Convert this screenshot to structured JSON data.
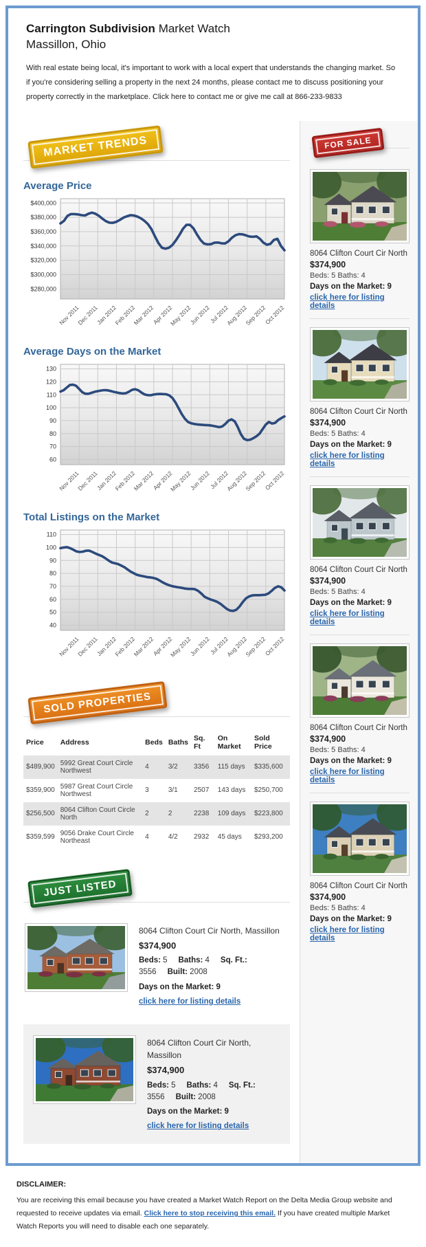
{
  "header": {
    "title_bold": "Carrington Subdivision",
    "title_rest": "Market Watch",
    "subtitle": "Massillon, Ohio",
    "intro": "With real estate being local, it's important to work with a local expert that understands the changing market. So if you're considering selling a property in the next 24 months, please contact me to discuss positioning your property correctly in the marketplace. Click here to contact me or give me call at 866-233-9833"
  },
  "badges": {
    "market_trends": "MARKET TRENDS",
    "for_sale": "FOR SALE",
    "sold_properties": "SOLD PROPERTIES",
    "just_listed": "JUST LISTED"
  },
  "colors": {
    "container_border": "#6c9bd0",
    "heading_blue": "#336699",
    "link_blue": "#2a66ad",
    "chart_line": "#2c4a7c",
    "badge_yellow": "#e9b310",
    "badge_red": "#c4262a",
    "badge_orange": "#e8821e",
    "badge_green": "#20742f"
  },
  "chart_data": [
    {
      "type": "line",
      "title": "Average Price",
      "categories": [
        "Nov 2011",
        "Dec 2011",
        "Jan 2012",
        "Feb 2012",
        "Mar 2012",
        "Apr 2012",
        "May 2012",
        "Jun 2012",
        "Jul 2012",
        "Aug 2012",
        "Sep 2012",
        "Oct 2012"
      ],
      "values": [
        371500,
        375000,
        382000,
        384500,
        384500,
        384000,
        383000,
        382500,
        385000,
        386500,
        385000,
        382000,
        378000,
        374500,
        372500,
        372300,
        373800,
        376500,
        379500,
        381500,
        383000,
        382500,
        381000,
        378500,
        375000,
        370500,
        363500,
        353500,
        344000,
        337500,
        336300,
        337500,
        341500,
        348000,
        355500,
        364000,
        369500,
        369500,
        364500,
        356000,
        348500,
        343500,
        342200,
        342500,
        344500,
        344800,
        343800,
        343500,
        346500,
        351500,
        355000,
        356500,
        356200,
        354800,
        353200,
        352800,
        353500,
        350000,
        344500,
        341800,
        343000,
        348500,
        350000,
        340000,
        334000
      ],
      "ylim": [
        266000,
        406000
      ],
      "yticks": [
        280000,
        300000,
        320000,
        340000,
        360000,
        380000,
        400000
      ],
      "ytick_labels": [
        "$280,000",
        "$300,000",
        "$320,000",
        "$340,000",
        "$360,000",
        "$380,000",
        "$400,000"
      ],
      "xlabel": "",
      "ylabel": "",
      "grid": true,
      "legend": "none",
      "color": "#2c4a7c"
    },
    {
      "type": "line",
      "title": "Average Days on the Market",
      "categories": [
        "Nov 2011",
        "Dec 2011",
        "Jan 2012",
        "Feb 2012",
        "Mar 2012",
        "Apr 2012",
        "May 2012",
        "Jun 2012",
        "Jul 2012",
        "Aug 2012",
        "Sep 2012",
        "Oct 2012"
      ],
      "values": [
        112.5,
        113.5,
        115.5,
        117.5,
        117.8,
        117,
        114.5,
        112,
        110.8,
        110.8,
        111.5,
        112.3,
        112.8,
        113.3,
        113.6,
        113.5,
        113,
        112.3,
        111.8,
        111.3,
        111,
        111.2,
        112.3,
        113.8,
        114.3,
        113.5,
        111.8,
        110.3,
        109.7,
        109.6,
        110.2,
        110.5,
        110.6,
        110.5,
        110.4,
        109.5,
        107.5,
        104,
        99.5,
        95,
        91.5,
        89,
        88,
        87.4,
        87.1,
        86.9,
        86.7,
        86.6,
        86.4,
        86,
        85.5,
        85,
        85.5,
        87.5,
        90,
        91,
        89.5,
        85,
        79.5,
        76,
        75,
        75.3,
        76.5,
        78,
        80,
        83.5,
        87,
        89,
        87.8,
        88.3,
        90.5,
        92,
        93.3
      ],
      "ylim": [
        56,
        133.5
      ],
      "yticks": [
        60,
        70,
        80,
        90,
        100,
        110,
        120,
        130
      ],
      "ytick_labels": [
        "60",
        "70",
        "80",
        "90",
        "100",
        "110",
        "120",
        "130"
      ],
      "xlabel": "",
      "ylabel": "",
      "grid": true,
      "legend": "none",
      "color": "#2c4a7c"
    },
    {
      "type": "line",
      "title": "Total Listings on the Market",
      "categories": [
        "Nov 2011",
        "Dec 2011",
        "Jan 2012",
        "Feb 2012",
        "Mar 2012",
        "Apr 2012",
        "May 2012",
        "Jun 2012",
        "Jul 2012",
        "Aug 2012",
        "Sep 2012",
        "Oct 2012"
      ],
      "values": [
        99.5,
        100,
        100.3,
        99.5,
        98.3,
        97,
        96.5,
        96.8,
        97.5,
        97.5,
        96.5,
        95.3,
        94.3,
        93.3,
        91.8,
        90,
        88.5,
        87.8,
        87.2,
        86,
        84.8,
        83,
        81.3,
        80,
        78.8,
        78.2,
        77.7,
        77.2,
        76.9,
        76.5,
        75.8,
        74.5,
        73,
        71.8,
        70.8,
        70.1,
        69.6,
        69.2,
        68.8,
        68.3,
        68,
        68,
        67.8,
        66.5,
        64.5,
        62,
        60.8,
        59.8,
        59,
        58,
        56.5,
        54.5,
        52.5,
        51.3,
        51,
        52,
        54.5,
        58,
        60.8,
        62.3,
        63,
        63.2,
        63.2,
        63.3,
        63.5,
        64.5,
        66.5,
        68.8,
        70,
        69.3,
        66.8
      ],
      "ylim": [
        36,
        113.5
      ],
      "yticks": [
        40,
        50,
        60,
        70,
        80,
        90,
        100,
        110
      ],
      "ytick_labels": [
        "40",
        "50",
        "60",
        "70",
        "80",
        "90",
        "100",
        "110"
      ],
      "xlabel": "",
      "ylabel": "",
      "grid": true,
      "legend": "none",
      "color": "#2c4a7c"
    }
  ],
  "for_sale": {
    "listings": [
      {
        "address": "8064 Clifton Court Cir North",
        "price": "$374,900",
        "beds_baths": "Beds: 5 Baths: 4",
        "days": "Days on the Market: 9",
        "link": "click here for listing details",
        "photo": {
          "sky": "#8aa06f",
          "tree": "#3f5f33",
          "grass": "#4e7d35",
          "roof": "#4b4a52",
          "wall": "#ddd8c8",
          "door": "#7a3030",
          "bush": "#b0566e",
          "drive": "#c9bfae"
        }
      },
      {
        "address": "8064 Clifton Court Cir North",
        "price": "$374,900",
        "beds_baths": "Beds: 5 Baths: 4",
        "days": "Days on the Market: 9",
        "link": "click here for listing details",
        "photo": {
          "sky": "#cfe0ed",
          "tree": "#4a6b3a",
          "grass": "#5b8a42",
          "roof": "#3d3d46",
          "wall": "#e6dcbc",
          "door": "#5a3a26",
          "bush": "#3f6b33",
          "drive": "#b9b4a8"
        }
      },
      {
        "address": "8064 Clifton Court Cir North",
        "price": "$374,900",
        "beds_baths": "Beds: 5 Baths: 4",
        "days": "Days on the Market: 9",
        "link": "click here for listing details",
        "photo": {
          "sky": "#e2e8ea",
          "tree": "#4f7040",
          "grass": "#558040",
          "roof": "#595e66",
          "wall": "#bcc7cc",
          "door": "#3e4a52",
          "bush": "#3f6b33",
          "drive": "#c2c2bd"
        }
      },
      {
        "address": "8064 Clifton Court Cir North",
        "price": "$374,900",
        "beds_baths": "Beds: 5 Baths: 4",
        "days": "Days on the Market: 9",
        "link": "click here for listing details",
        "photo": {
          "sky": "#9fb588",
          "tree": "#39572e",
          "grass": "#4d7c36",
          "roof": "#6a6f78",
          "wall": "#ece7dc",
          "door": "#4a3b2e",
          "bush": "#8a3d5a",
          "drive": "#cfc8b8"
        }
      },
      {
        "address": "8064 Clifton Court Cir North",
        "price": "$374,900",
        "beds_baths": "Beds: 5 Baths: 4",
        "days": "Days on the Market: 9",
        "link": "click here for listing details",
        "photo": {
          "sky": "#3e7fc1",
          "tree": "#2f5a30",
          "grass": "#4f8040",
          "roof": "#474c54",
          "wall": "#dcd0b4",
          "door": "#57402c",
          "bush": "#39632f",
          "drive": "#cfc9bd"
        }
      }
    ]
  },
  "sold_properties": {
    "headers": [
      "Price",
      "Address",
      "Beds",
      "Baths",
      "Sq. Ft",
      "On Market",
      "Sold Price"
    ],
    "rows": [
      [
        "$489,900",
        "5992 Great Court Circle Northwest",
        "4",
        "3/2",
        "3356",
        "115 days",
        "$335,600"
      ],
      [
        "$359,900",
        "5987 Great Court Circle Northwest",
        "3",
        "3/1",
        "2507",
        "143 days",
        "$250,700"
      ],
      [
        "$256,500",
        "8064 Clifton Court Circle North",
        "2",
        "2",
        "2238",
        "109 days",
        "$223,800"
      ],
      [
        "$359,599",
        "9056 Drake Court Circle Northeast",
        "4",
        "4/2",
        "2932",
        "45 days",
        "$293,200"
      ]
    ]
  },
  "just_listed": {
    "items": [
      {
        "address": "8064 Clifton Court Cir North, Massillon",
        "price": "$374,900",
        "specs": [
          {
            "label": "Beds:",
            "value": "5"
          },
          {
            "label": "Baths:",
            "value": "4"
          },
          {
            "label": "Sq. Ft.:",
            "value": "3556"
          },
          {
            "label": "Built:",
            "value": "2008"
          }
        ],
        "days": "Days on the Market: 9",
        "link": "click here for listing details",
        "photo": {
          "sky": "#9cc0e2",
          "tree": "#3c6032",
          "grass": "#4e7d35",
          "roof": "#6e6a64",
          "wall": "#a55c3a",
          "door": "#4f3322",
          "bush": "#7a3044",
          "drive": "#9aa0a6"
        }
      },
      {
        "address": "8064 Clifton Court Cir North, Massillon",
        "price": "$374,900",
        "specs": [
          {
            "label": "Beds:",
            "value": "5"
          },
          {
            "label": "Baths:",
            "value": "4"
          },
          {
            "label": "Sq. Ft.:",
            "value": "3556"
          },
          {
            "label": "Built:",
            "value": "2008"
          }
        ],
        "days": "Days on the Market: 9",
        "link": "click here for listing details",
        "photo": {
          "sky": "#2e6fc2",
          "tree": "#35602e",
          "grass": "#3f7a35",
          "roof": "#66625e",
          "wall": "#8e4a32",
          "door": "#402a1c",
          "bush": "#355e2c",
          "drive": "#b9b4a8"
        }
      }
    ]
  },
  "footer": {
    "heading": "DISCLAIMER:",
    "text_before": "You are receiving this email because you have created a Market Watch Report on the Delta Media Group website and requested to receive updates via email. ",
    "link": "Click here to stop receiving this email.",
    "text_after": " If you have created multiple Market Watch Reports you will need to disable each one separately."
  }
}
